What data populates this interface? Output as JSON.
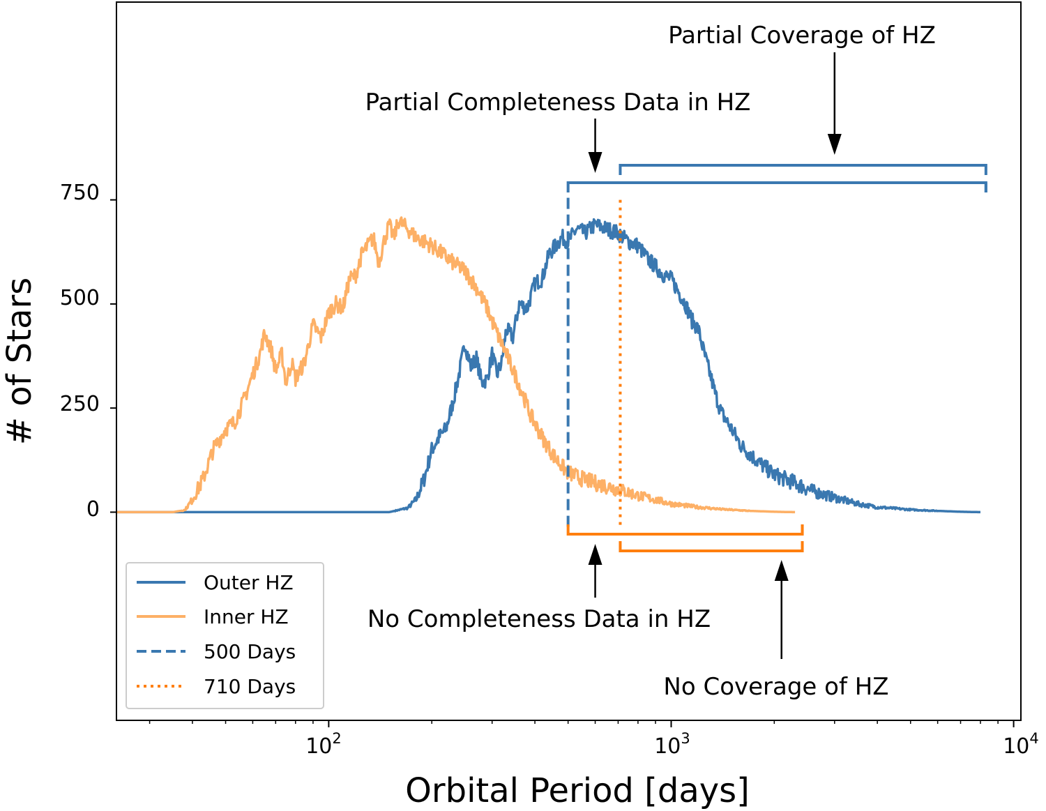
{
  "chart_data": {
    "type": "line",
    "xscale": "log",
    "xlim": [
      24,
      10500
    ],
    "ylim": [
      -500,
      1225
    ],
    "xlabel": "Orbital Period [days]",
    "ylabel": "# of Stars",
    "y_ticks": [
      0,
      250,
      500,
      750
    ],
    "x_ticks": [
      {
        "value": 100,
        "base": "10",
        "exp": "2"
      },
      {
        "value": 1000,
        "base": "10",
        "exp": "3"
      },
      {
        "value": 10000,
        "base": "10",
        "exp": "4"
      }
    ],
    "colors": {
      "outer": "#3a78b0",
      "inner": "#fdb066",
      "orange": "#ff7f0e"
    },
    "series": [
      {
        "name": "Outer HZ",
        "color": "#3a78b0",
        "x": [
          24,
          40,
          60,
          100,
          150,
          170,
          180,
          190,
          200,
          210,
          220,
          230,
          240,
          250,
          260,
          270,
          280,
          290,
          300,
          310,
          320,
          330,
          345,
          360,
          380,
          400,
          420,
          440,
          460,
          480,
          500,
          530,
          560,
          600,
          650,
          700,
          750,
          800,
          850,
          900,
          950,
          1000,
          1050,
          1100,
          1150,
          1200,
          1250,
          1300,
          1350,
          1400,
          1500,
          1600,
          1800,
          2000,
          2300,
          2600,
          3000,
          3500,
          4000,
          5000,
          6000,
          7000,
          8000
        ],
        "y": [
          0,
          0,
          0,
          0,
          0,
          10,
          30,
          80,
          150,
          180,
          200,
          260,
          330,
          405,
          350,
          370,
          310,
          320,
          380,
          330,
          360,
          440,
          420,
          500,
          490,
          550,
          560,
          620,
          640,
          660,
          650,
          680,
          670,
          690,
          680,
          670,
          650,
          640,
          610,
          590,
          570,
          560,
          530,
          500,
          460,
          440,
          380,
          330,
          280,
          240,
          200,
          160,
          120,
          90,
          70,
          50,
          35,
          20,
          12,
          6,
          3,
          1,
          0
        ]
      },
      {
        "name": "Inner HZ",
        "color": "#fdb066",
        "x": [
          24,
          30,
          35,
          38,
          40,
          43,
          46,
          50,
          53,
          56,
          60,
          63,
          65,
          68,
          70,
          73,
          75,
          78,
          80,
          85,
          90,
          95,
          100,
          105,
          110,
          115,
          120,
          125,
          130,
          135,
          140,
          145,
          150,
          155,
          160,
          170,
          180,
          190,
          200,
          215,
          230,
          250,
          270,
          290,
          310,
          330,
          350,
          370,
          390,
          420,
          450,
          480,
          500,
          550,
          600,
          700,
          800,
          900,
          1000,
          1200,
          1400,
          1700,
          2000,
          2300
        ],
        "y": [
          0,
          0,
          0,
          5,
          30,
          80,
          150,
          200,
          215,
          260,
          330,
          380,
          430,
          390,
          340,
          380,
          310,
          360,
          320,
          360,
          450,
          420,
          480,
          500,
          490,
          560,
          570,
          620,
          640,
          660,
          600,
          650,
          690,
          660,
          700,
          680,
          660,
          650,
          640,
          620,
          600,
          580,
          540,
          490,
          430,
          380,
          330,
          280,
          230,
          180,
          140,
          110,
          95,
          80,
          70,
          55,
          40,
          30,
          20,
          12,
          7,
          3,
          1,
          0
        ]
      }
    ],
    "reference_lines": [
      {
        "name": "500 Days",
        "x": 500,
        "style": "dashed",
        "color": "#3a78b0"
      },
      {
        "name": "710 Days",
        "x": 710,
        "style": "dotted",
        "color": "#ff7f0e"
      }
    ],
    "annotations": [
      "Partial Coverage of HZ",
      "Partial Completeness Data in HZ",
      "No Completeness Data in HZ",
      "No Coverage of HZ"
    ],
    "legend": {
      "position": "lower-left",
      "entries": [
        "Outer HZ",
        "Inner HZ",
        "500 Days",
        "710 Days"
      ]
    }
  }
}
